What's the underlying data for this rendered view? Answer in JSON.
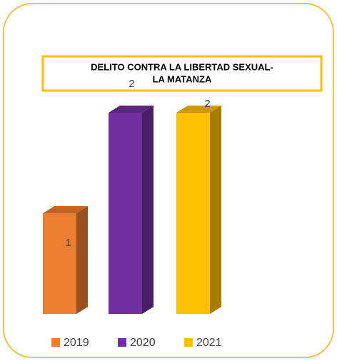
{
  "chart_data": {
    "type": "bar3d",
    "title": [
      "DELITO CONTRA LA LIBERTAD SEXUAL-",
      "LA MATANZA"
    ],
    "categories": [
      "2019",
      "2020",
      "2021"
    ],
    "values": [
      1,
      2,
      2
    ],
    "colors": [
      "#ed7d31",
      "#7030a0",
      "#ffc000"
    ],
    "ylim": [
      0,
      2
    ],
    "legend": "bottom"
  }
}
